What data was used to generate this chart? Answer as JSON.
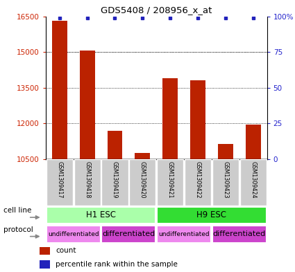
{
  "title": "GDS5408 / 208956_x_at",
  "samples": [
    "GSM1309417",
    "GSM1309418",
    "GSM1309419",
    "GSM1309420",
    "GSM1309421",
    "GSM1309422",
    "GSM1309423",
    "GSM1309424"
  ],
  "counts": [
    16300,
    15050,
    11700,
    10750,
    13900,
    13800,
    11150,
    11950
  ],
  "y_min": 10500,
  "y_max": 16500,
  "y_ticks": [
    10500,
    12000,
    13500,
    15000,
    16500
  ],
  "y_right_ticks": [
    0,
    25,
    50,
    75,
    100
  ],
  "y_right_labels": [
    "0",
    "25",
    "50",
    "75",
    "100%"
  ],
  "cell_line_groups": [
    {
      "label": "H1 ESC",
      "start": 0,
      "end": 4,
      "color": "#AAFFAA"
    },
    {
      "label": "H9 ESC",
      "start": 4,
      "end": 8,
      "color": "#33DD33"
    }
  ],
  "protocol_groups": [
    {
      "label": "undifferentiated",
      "start": 0,
      "end": 2,
      "color": "#EE88EE"
    },
    {
      "label": "differentiated",
      "start": 2,
      "end": 4,
      "color": "#CC44CC"
    },
    {
      "label": "undifferentiated",
      "start": 4,
      "end": 6,
      "color": "#EE88EE"
    },
    {
      "label": "differentiated",
      "start": 6,
      "end": 8,
      "color": "#CC44CC"
    }
  ],
  "bar_color": "#BB2200",
  "dot_color": "#2222BB",
  "label_color_left": "#CC2200",
  "label_color_right": "#2222CC",
  "sample_bg_color": "#CCCCCC",
  "cell_line_label": "cell line",
  "protocol_label": "protocol",
  "legend_count": "count",
  "legend_pct": "percentile rank within the sample"
}
